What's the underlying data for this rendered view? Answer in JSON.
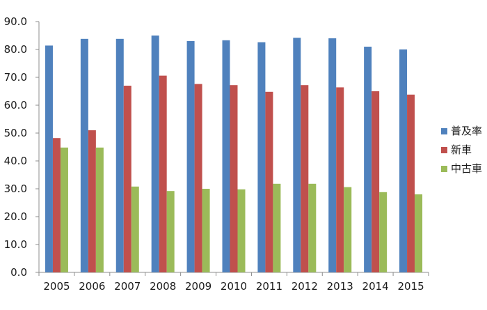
{
  "chart_data": {
    "type": "bar",
    "title": "",
    "xlabel": "",
    "ylabel": "",
    "categories": [
      "2005",
      "2006",
      "2007",
      "2008",
      "2009",
      "2010",
      "2011",
      "2012",
      "2013",
      "2014",
      "2015"
    ],
    "series": [
      {
        "name": "普及率",
        "color": "#4F81BD",
        "values": [
          81.4,
          83.8,
          83.8,
          85.0,
          83.0,
          83.3,
          82.6,
          84.2,
          84.0,
          81.0,
          80.0
        ]
      },
      {
        "name": "新車",
        "color": "#C0504D",
        "values": [
          48.2,
          51.0,
          67.0,
          70.6,
          67.6,
          67.2,
          64.8,
          67.2,
          66.4,
          65.0,
          63.8
        ]
      },
      {
        "name": "中古車",
        "color": "#9BBB59",
        "values": [
          44.8,
          44.8,
          30.8,
          29.2,
          30.0,
          29.8,
          31.8,
          31.8,
          30.6,
          28.8,
          28.0
        ]
      }
    ],
    "ylim": [
      0,
      90
    ],
    "yticks": [
      "0.0",
      "10.0",
      "20.0",
      "30.0",
      "40.0",
      "50.0",
      "60.0",
      "70.0",
      "80.0",
      "90.0"
    ],
    "grid": false,
    "legend_position": "right"
  }
}
